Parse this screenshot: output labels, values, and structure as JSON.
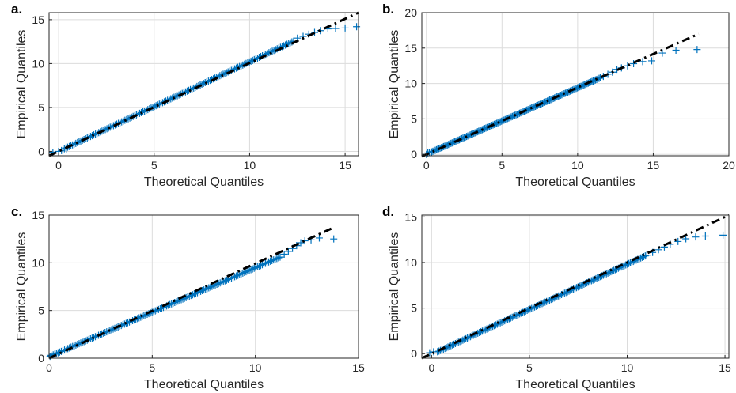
{
  "figure": {
    "marker_color": "#0072BD",
    "ref_line_color": "#000000",
    "grid": true,
    "marker_symbol": "+"
  },
  "chart_data": [
    {
      "type": "scatter",
      "panel_label": "a.",
      "xlabel": "Theoretical Quantiles",
      "ylabel": "Empirical Quantiles",
      "xlim": [
        -0.5,
        15.7
      ],
      "ylim": [
        -0.5,
        15.8
      ],
      "xticks": [
        0,
        5,
        10,
        15
      ],
      "yticks": [
        0,
        5,
        10,
        15
      ],
      "reference_line": {
        "x": [
          -0.5,
          15.7
        ],
        "y": [
          -0.5,
          15.8
        ]
      },
      "qq_body": {
        "x0": 0.3,
        "y0": 0.3,
        "x1": 12.3,
        "y1": 12.55
      },
      "points": [
        [
          -0.3,
          -0.1
        ],
        [
          0,
          0
        ],
        [
          0.15,
          0.1
        ],
        [
          0.4,
          0.25
        ],
        [
          12.5,
          12.9
        ],
        [
          12.8,
          13.1
        ],
        [
          13.1,
          13.35
        ],
        [
          13.4,
          13.55
        ],
        [
          13.7,
          13.75
        ],
        [
          14.1,
          13.95
        ],
        [
          14.5,
          14.0
        ],
        [
          15.0,
          14.05
        ],
        [
          15.6,
          14.2
        ]
      ]
    },
    {
      "type": "scatter",
      "panel_label": "b.",
      "xlabel": "Theoretical Quantiles",
      "ylabel": "Empirical Quantiles",
      "xlim": [
        -0.3,
        20
      ],
      "ylim": [
        -0.2,
        20
      ],
      "xticks": [
        0,
        5,
        10,
        15,
        20
      ],
      "yticks": [
        0,
        5,
        10,
        15,
        20
      ],
      "reference_line": {
        "x": [
          -0.3,
          18.0
        ],
        "y": [
          -0.3,
          17.0
        ]
      },
      "qq_body": {
        "x0": 0.35,
        "y0": 0.35,
        "x1": 11.5,
        "y1": 10.8
      },
      "points": [
        [
          0,
          0
        ],
        [
          0.1,
          0.2
        ],
        [
          0.2,
          0.3
        ],
        [
          11.7,
          11.0
        ],
        [
          12.0,
          11.3
        ],
        [
          12.3,
          11.6
        ],
        [
          12.6,
          12.0
        ],
        [
          12.9,
          12.2
        ],
        [
          13.3,
          12.5
        ],
        [
          13.7,
          12.8
        ],
        [
          14.3,
          13.1
        ],
        [
          14.9,
          13.2
        ],
        [
          15.6,
          14.3
        ],
        [
          16.5,
          14.7
        ],
        [
          17.9,
          14.8
        ]
      ]
    },
    {
      "type": "scatter",
      "panel_label": "c.",
      "xlabel": "Theoretical Quantiles",
      "ylabel": "Empirical Quantiles",
      "xlim": [
        0,
        15
      ],
      "ylim": [
        0,
        15
      ],
      "xticks": [
        0,
        5,
        10,
        15
      ],
      "yticks": [
        0,
        5,
        10,
        15
      ],
      "reference_line": {
        "x": [
          0,
          13.8
        ],
        "y": [
          0,
          13.7
        ]
      },
      "qq_body": {
        "x0": 0.2,
        "y0": 0.35,
        "x1": 11.2,
        "y1": 10.6
      },
      "points": [
        [
          0.05,
          0.2
        ],
        [
          0.1,
          0.3
        ],
        [
          11.4,
          10.9
        ],
        [
          11.6,
          11.2
        ],
        [
          11.8,
          11.5
        ],
        [
          12.0,
          11.8
        ],
        [
          12.2,
          12.1
        ],
        [
          12.4,
          12.3
        ],
        [
          12.7,
          12.4
        ],
        [
          13.1,
          12.6
        ],
        [
          13.8,
          12.5
        ]
      ]
    },
    {
      "type": "scatter",
      "panel_label": "d.",
      "xlabel": "Theoretical Quantiles",
      "ylabel": "Empirical Quantiles",
      "xlim": [
        -0.5,
        15.2
      ],
      "ylim": [
        -0.5,
        15.2
      ],
      "xticks": [
        0,
        5,
        10,
        15
      ],
      "yticks": [
        0,
        5,
        10,
        15
      ],
      "reference_line": {
        "x": [
          -0.5,
          15.2
        ],
        "y": [
          -0.5,
          15.2
        ]
      },
      "qq_body": {
        "x0": 0.3,
        "y0": 0.2,
        "x1": 11.0,
        "y1": 10.8
      },
      "points": [
        [
          -0.1,
          0.1
        ],
        [
          0.1,
          0.2
        ],
        [
          11.3,
          11.1
        ],
        [
          11.6,
          11.4
        ],
        [
          11.9,
          11.7
        ],
        [
          12.2,
          12.0
        ],
        [
          12.6,
          12.3
        ],
        [
          13.0,
          12.6
        ],
        [
          13.5,
          12.8
        ],
        [
          14.0,
          12.9
        ],
        [
          14.9,
          13.0
        ]
      ]
    }
  ]
}
